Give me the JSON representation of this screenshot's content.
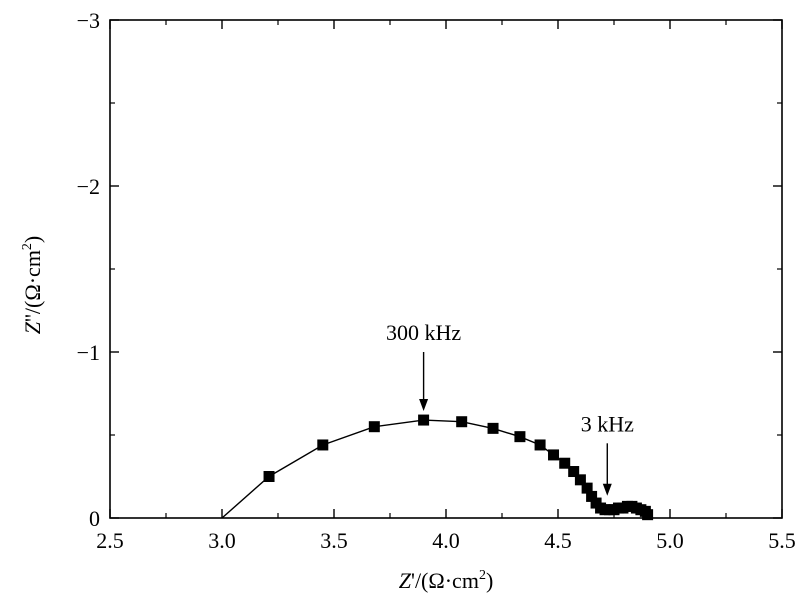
{
  "chart_data": {
    "type": "scatter",
    "title": "",
    "xlabel": "Z'/(Ω·cm²)",
    "ylabel": "Z''/(Ω·cm²)",
    "xlabel_parts": {
      "var": "Z",
      "mark": "'",
      "rest": "/(Ω·cm",
      "sup": "2",
      "close": ")"
    },
    "ylabel_parts": {
      "var": "Z",
      "mark": "''",
      "rest": "/(Ω·cm",
      "sup": "2",
      "close": ")"
    },
    "xlim": [
      2.5,
      5.5
    ],
    "ylim": [
      0,
      -3
    ],
    "y_inverted": true,
    "grid": false,
    "x_ticks": [
      2.5,
      3.0,
      3.5,
      4.0,
      4.5,
      5.0,
      5.5
    ],
    "x_tick_labels": [
      "2.5",
      "3.0",
      "3.5",
      "4.0",
      "4.5",
      "5.0",
      "5.5"
    ],
    "y_ticks": [
      0,
      -1,
      -2,
      -3
    ],
    "y_tick_labels": [
      "0",
      "−1",
      "−2",
      "−3"
    ],
    "series": [
      {
        "marker": "square",
        "color": "#000000",
        "line_x": [
          3.0,
          3.21,
          3.45,
          3.68,
          3.9,
          4.07,
          4.21,
          4.33,
          4.42,
          4.48,
          4.53,
          4.57,
          4.6,
          4.63,
          4.65,
          4.67,
          4.69,
          4.71,
          4.74,
          4.77,
          4.8,
          4.83,
          4.86,
          4.88,
          4.9
        ],
        "line_y": [
          0.0,
          -0.25,
          -0.44,
          -0.55,
          -0.59,
          -0.58,
          -0.54,
          -0.49,
          -0.44,
          -0.38,
          -0.33,
          -0.28,
          -0.23,
          -0.18,
          -0.13,
          -0.09,
          -0.06,
          -0.05,
          -0.05,
          -0.06,
          -0.07,
          -0.07,
          -0.06,
          -0.04,
          -0.02
        ],
        "points": [
          {
            "x": 3.21,
            "y": -0.25
          },
          {
            "x": 3.45,
            "y": -0.44
          },
          {
            "x": 3.68,
            "y": -0.55
          },
          {
            "x": 3.9,
            "y": -0.59
          },
          {
            "x": 4.07,
            "y": -0.58
          },
          {
            "x": 4.21,
            "y": -0.54
          },
          {
            "x": 4.33,
            "y": -0.49
          },
          {
            "x": 4.42,
            "y": -0.44
          },
          {
            "x": 4.48,
            "y": -0.38
          },
          {
            "x": 4.53,
            "y": -0.33
          },
          {
            "x": 4.57,
            "y": -0.28
          },
          {
            "x": 4.6,
            "y": -0.23
          },
          {
            "x": 4.63,
            "y": -0.18
          },
          {
            "x": 4.65,
            "y": -0.13
          },
          {
            "x": 4.67,
            "y": -0.09
          },
          {
            "x": 4.69,
            "y": -0.06
          },
          {
            "x": 4.71,
            "y": -0.05
          },
          {
            "x": 4.73,
            "y": -0.05
          },
          {
            "x": 4.75,
            "y": -0.05
          },
          {
            "x": 4.77,
            "y": -0.06
          },
          {
            "x": 4.79,
            "y": -0.06
          },
          {
            "x": 4.81,
            "y": -0.07
          },
          {
            "x": 4.83,
            "y": -0.07
          },
          {
            "x": 4.85,
            "y": -0.06
          },
          {
            "x": 4.87,
            "y": -0.05
          },
          {
            "x": 4.89,
            "y": -0.04
          },
          {
            "x": 4.9,
            "y": -0.02
          }
        ]
      }
    ],
    "annotations": [
      {
        "text": "300 kHz",
        "x": 3.9,
        "y": -0.59,
        "arrow_from_y": -1.0
      },
      {
        "text": "3 kHz",
        "x": 4.72,
        "y": -0.08,
        "arrow_from_y": -0.45
      }
    ]
  }
}
